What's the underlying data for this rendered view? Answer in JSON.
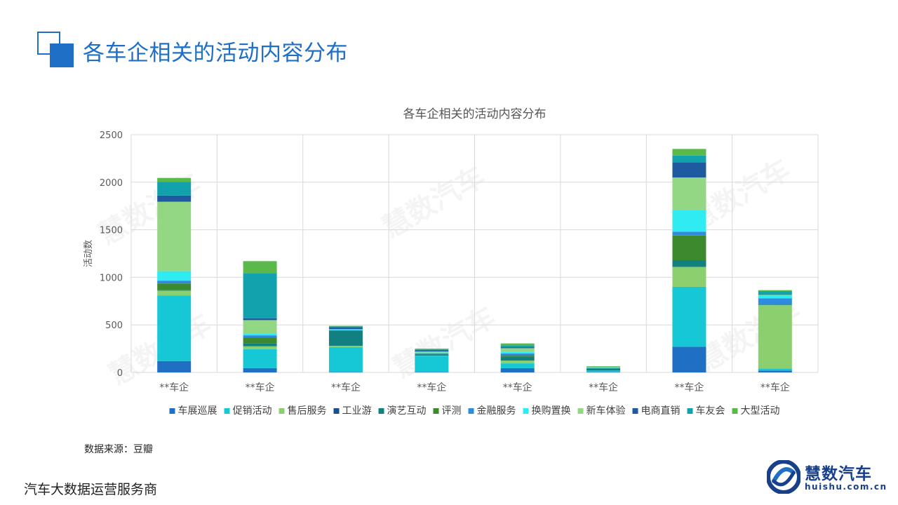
{
  "page": {
    "title": "各车企相关的活动内容分布",
    "source": "数据来源：豆瓣",
    "footer": "汽车大数据运营服务商"
  },
  "logo": {
    "name": "慧数汽车",
    "url": "huishu.com.cn"
  },
  "watermark": "慧数汽车",
  "colors": {
    "accent": "#1e6fc5",
    "series": [
      "#1f6fc5",
      "#16c8d6",
      "#8ccf6e",
      "#1a4f8c",
      "#127f80",
      "#3c8a2e",
      "#2e8be0",
      "#2eecf2",
      "#93d684",
      "#1e5aa0",
      "#12a2ad",
      "#5bb84b"
    ]
  },
  "chart_data": {
    "type": "bar",
    "stacked": true,
    "title": "各车企相关的活动内容分布",
    "ylabel": "活动数",
    "xlabel": "",
    "ylim": [
      0,
      2500
    ],
    "yticks": [
      0,
      500,
      1000,
      1500,
      2000,
      2500
    ],
    "grid": true,
    "legend_position": "bottom",
    "categories": [
      "**车企",
      "**车企",
      "**车企",
      "**车企",
      "**车企",
      "**车企",
      "**车企",
      "**车企"
    ],
    "series": [
      {
        "name": "车展巡展",
        "values": [
          120,
          45,
          5,
          5,
          45,
          5,
          270,
          20
        ]
      },
      {
        "name": "促销活动",
        "values": [
          690,
          200,
          260,
          165,
          50,
          15,
          630,
          20
        ]
      },
      {
        "name": "售后服务",
        "values": [
          50,
          30,
          15,
          5,
          30,
          0,
          210,
          670
        ]
      },
      {
        "name": "工业游",
        "values": [
          0,
          0,
          0,
          0,
          0,
          0,
          0,
          0
        ]
      },
      {
        "name": "演艺互动",
        "values": [
          5,
          30,
          160,
          10,
          40,
          20,
          70,
          10
        ]
      },
      {
        "name": "评测",
        "values": [
          70,
          60,
          0,
          10,
          15,
          5,
          260,
          0
        ]
      },
      {
        "name": "金融服务",
        "values": [
          30,
          25,
          5,
          5,
          20,
          0,
          40,
          60
        ]
      },
      {
        "name": "换购置换",
        "values": [
          100,
          20,
          5,
          10,
          20,
          5,
          230,
          30
        ]
      },
      {
        "name": "新车体验",
        "values": [
          730,
          140,
          5,
          10,
          35,
          5,
          340,
          5
        ]
      },
      {
        "name": "电商直销",
        "values": [
          65,
          20,
          20,
          15,
          10,
          0,
          160,
          0
        ]
      },
      {
        "name": "车友会",
        "values": [
          145,
          470,
          10,
          5,
          20,
          5,
          70,
          40
        ]
      },
      {
        "name": "大型活动",
        "values": [
          40,
          130,
          5,
          10,
          20,
          5,
          70,
          10
        ]
      }
    ]
  }
}
